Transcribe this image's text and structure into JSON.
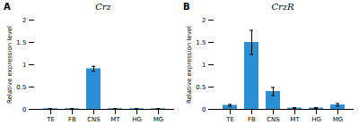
{
  "chart_data": [
    {
      "type": "bar",
      "title": "Crz",
      "annotations": [
        "A"
      ],
      "categories": [
        "TE",
        "FB",
        "CNS",
        "MT",
        "HG",
        "MG"
      ],
      "values": [
        0.015,
        0.015,
        0.91,
        0.015,
        0.015,
        0.015
      ],
      "errors": [
        0.005,
        0.005,
        0.055,
        0.005,
        0.005,
        0.005
      ],
      "color": "#2b8fd4",
      "ylabel": "Relative expression level",
      "ylim": [
        0,
        2
      ],
      "yticks": [
        0,
        0.5,
        1,
        1.5,
        2
      ],
      "grid": false
    },
    {
      "type": "bar",
      "title": "CrzR",
      "annotations": [
        "B"
      ],
      "categories": [
        "TE",
        "FB",
        "CNS",
        "MT",
        "HG",
        "MG"
      ],
      "values": [
        0.09,
        1.5,
        0.4,
        0.03,
        0.03,
        0.1
      ],
      "errors": [
        0.02,
        0.27,
        0.09,
        0.01,
        0.01,
        0.03
      ],
      "color": "#2b8fd4",
      "ylabel": "Relative expression level",
      "ylim": [
        0,
        2
      ],
      "yticks": [
        0,
        0.5,
        1,
        1.5,
        2
      ],
      "grid": false
    }
  ]
}
